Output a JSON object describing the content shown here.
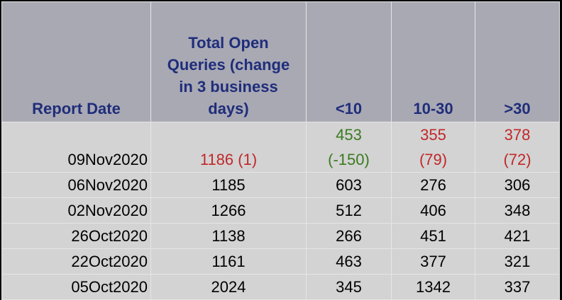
{
  "headers": {
    "report_date": "Report Date",
    "total_open": [
      "Total Open",
      "Queries (change",
      "in 3 business",
      "days)"
    ],
    "lt10": "<10",
    "b10_30": "10-30",
    "gt30": ">30"
  },
  "first_row": {
    "date": "09Nov2020",
    "total": "1186 (1)",
    "lt10": [
      "453",
      "(-150)"
    ],
    "b10_30": [
      "355",
      "(79)"
    ],
    "gt30": [
      "378",
      "(72)"
    ]
  },
  "rows": [
    {
      "date": "06Nov2020",
      "total": "1185",
      "lt10": "603",
      "b10_30": "276",
      "gt30": "306"
    },
    {
      "date": "02Nov2020",
      "total": "1266",
      "lt10": "512",
      "b10_30": "406",
      "gt30": "348"
    },
    {
      "date": "26Oct2020",
      "total": "1138",
      "lt10": "266",
      "b10_30": "451",
      "gt30": "421"
    },
    {
      "date": "22Oct2020",
      "total": "1161",
      "lt10": "463",
      "b10_30": "377",
      "gt30": "321"
    },
    {
      "date": "05Oct2020",
      "total": "2024",
      "lt10": "345",
      "b10_30": "1342",
      "gt30": "337"
    }
  ],
  "colors": {
    "header_bg": "#a9a9b4",
    "header_text": "#1f2d7a",
    "body_bg": "#d3d3d3",
    "decrease": "#3a7a1f",
    "increase": "#c0282a"
  }
}
